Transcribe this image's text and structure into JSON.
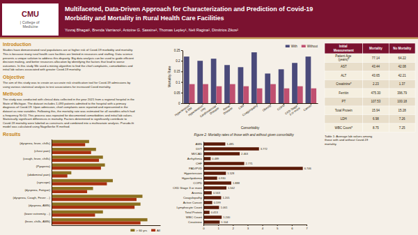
{
  "poster": {
    "logo": [
      "CMU",
      "|  College of\n   Medicine"
    ],
    "title": [
      "Multifaceted, Data-Driven Approach for Characterization and Prediction of Covid-19",
      "Morbidity and Mortality in Rural Health Care Facilities"
    ],
    "authors": "Yuvraj Bhagat¹, Brenda Varriano¹, Antoine G. Sassine¹, Thomas Lepley¹, Neli Ragina¹, Dimitrios Zikos²",
    "sections": [
      {
        "title": "Introduction",
        "text": "Studies have demonstrated rural populations are at higher risk of Covid-19 morbidity and mortality.\nThis is because many rural health care facilities are limited in resources and staffing. Data science\npresents a unique solution to address this disparity. Big data analysis can be used to guide efficient\ndecision making, and better resources allocation by identifying the factors that lead to worse\noutcomes. In this study We used a mining algorithm to find the chief complaints, comorbidities and\ninitial lab values associated with greater Covid-19 mortality."
      },
      {
        "title": "Objective",
        "text": "The aim of this study was to create an accurate risk stratification tool for Covid-19 admissions by\nusing various statistical analysis to test associations for increased Covid mortality."
      },
      {
        "title": "Methods",
        "text": "The study was conducted with clinical data collected in the year 2021 from a regional hospital in the\nState of Michigan. The dataset includes 1,093 patients admitted to the hospital with a primary\ndiagnosis of Covid-19. Upon admission, chief complaints were reported and represented in the\ndataset as new variables. Following this, the mortality rate was estimated for all variables which had\na frequency N>10. This process was repeated for documented comorbidities and initial lab values.\nStatistically significant differences in mortality. Factors determined to significantly contribute to\nCovid-19 mortality were labeled as constructs and combined into a multivariate analysis. Pseudo-fit\nmodel was calculated using Nagelkerke R method."
      }
    ],
    "table": {
      "headers": [
        "Initial\nMeasurement",
        "Mortality",
        "No Mortality"
      ],
      "rows": [
        [
          "Patient Age\n(years)*",
          "77.14",
          "64.22"
        ],
        [
          "AST",
          "43.44",
          "42.08"
        ],
        [
          "ALT",
          "43.65",
          "42.21"
        ],
        [
          "Creatinine*",
          "2.23",
          "1.37"
        ],
        [
          "Ferritin",
          "475.30",
          "396.79"
        ],
        [
          "PT",
          "107.53",
          "100.18"
        ],
        [
          "Total Protein",
          "15.94",
          "15.28"
        ],
        [
          "LDH",
          "6.98",
          "7.26"
        ],
        [
          "WBC Count*",
          "8.75",
          "7.25"
        ]
      ],
      "note": "Table 1: Average lab values among\nthose with and without Covid-19\nmortality."
    },
    "palette": {
      "background": "#f5f0e8",
      "header": "#7b1230",
      "header_text": "#ffffff",
      "separator": "#c8a060",
      "logo_box": "#ffffff",
      "logo_text": "#555555",
      "section_title": "#c8871a",
      "text": "#2a1a0a",
      "table_header": "#7b1230",
      "table_border": "#ffffff",
      "table_rows": [
        "#f5efe0",
        "#e8deca"
      ]
    }
  },
  "chart_data": [
    {
      "type": "bar",
      "orientation": "horizontal",
      "title": "Results",
      "categories": [
        "(fever, chills, AMS)",
        "(lower extremity ...)",
        "(dyspnea, AMS)",
        "(dyspnea, Cough, Fever ...)",
        "(dyspnea, Fatigue)",
        "(syncope)",
        "(abdominal pain)",
        "(Pyaperia)",
        "(cough, fever, chills)",
        "(chest pain)",
        "(dyspnea, fever, chills)"
      ],
      "series": [
        {
          "name": "> 60 yrs",
          "color": "#8b7020",
          "values": [
            4.85,
            2.6,
            4.5,
            4.6,
            2.1,
            3.1,
            1.0,
            2.7,
            2.6,
            2.25,
            1.9
          ]
        },
        {
          "name": "All",
          "color": "#a83010",
          "values": [
            4.5,
            2.2,
            4.2,
            4.3,
            1.8,
            2.8,
            0.8,
            2.5,
            2.4,
            2.0,
            1.7
          ]
        }
      ],
      "xlim": [
        0,
        5.5
      ],
      "tick_labels": "y",
      "legend": "lower right"
    },
    {
      "type": "bar",
      "title": "Figure 2: Mortality rates of those with and without given comorbidity",
      "xlabel": "Comorbidity",
      "ylabel": "Mortality Rate",
      "categories": [
        "Hypertension\n& DM",
        "Hypertension\nonly",
        "Cardiovascular\nDisease",
        "Renal\nDisease",
        "CAD",
        "Coagulopathy",
        "Obesity",
        "COPD",
        "CKD Stage\n3 or more",
        "Cancer"
      ],
      "series": [
        {
          "name": "With",
          "color": "#4a4a7a",
          "values": [
            0.22,
            0.2,
            0.21,
            0.18,
            0.17,
            0.24,
            0.14,
            0.16,
            0.19,
            0.22
          ]
        },
        {
          "name": "Without",
          "color": "#c05070",
          "values": [
            0.09,
            0.09,
            0.08,
            0.09,
            0.08,
            0.07,
            0.09,
            0.07,
            0.08,
            0.07
          ]
        }
      ],
      "ylim": [
        0,
        0.25
      ],
      "yticks": [
        0,
        0.05,
        0.1,
        0.15,
        0.2,
        0.25
      ],
      "legend": "upper right"
    },
    {
      "type": "bar",
      "orientation": "horizontal",
      "categories": [
        "Creatinine",
        "WBC Count",
        "Total Protein",
        "Lymphocyte Count",
        "Active Cancer",
        "Coagulopathy",
        "Anemia",
        "CKD Stage 3 or more",
        "COPD",
        "Hyperlipidemia",
        "Hypertension",
        "PAD/PVD",
        "CHF",
        "Arrhythmia",
        "MI/CAD",
        "DVT",
        "AMS"
      ],
      "values": [
        1.104,
        1.24,
        0.413,
        1.061,
        0.599,
        1.205,
        0.563,
        1.562,
        1.888,
        0.93,
        1.528,
        6.746,
        2.771,
        0.489,
        2.463,
        3.772,
        1.485
      ],
      "value_labels": [
        "1.104",
        "1.240",
        "0.413",
        "1.061",
        "0.599",
        "1.205",
        "0.563",
        "1.562",
        "1.888",
        "0.930",
        "1.528",
        "6.746",
        "2.771",
        "0.489",
        "2.463",
        "3.772",
        "1.485"
      ],
      "color": "#5a1a08",
      "xlim": [
        0,
        7
      ],
      "xticks": [
        0,
        1,
        2,
        3,
        4,
        5,
        6,
        7
      ],
      "data_labels": true
    }
  ]
}
